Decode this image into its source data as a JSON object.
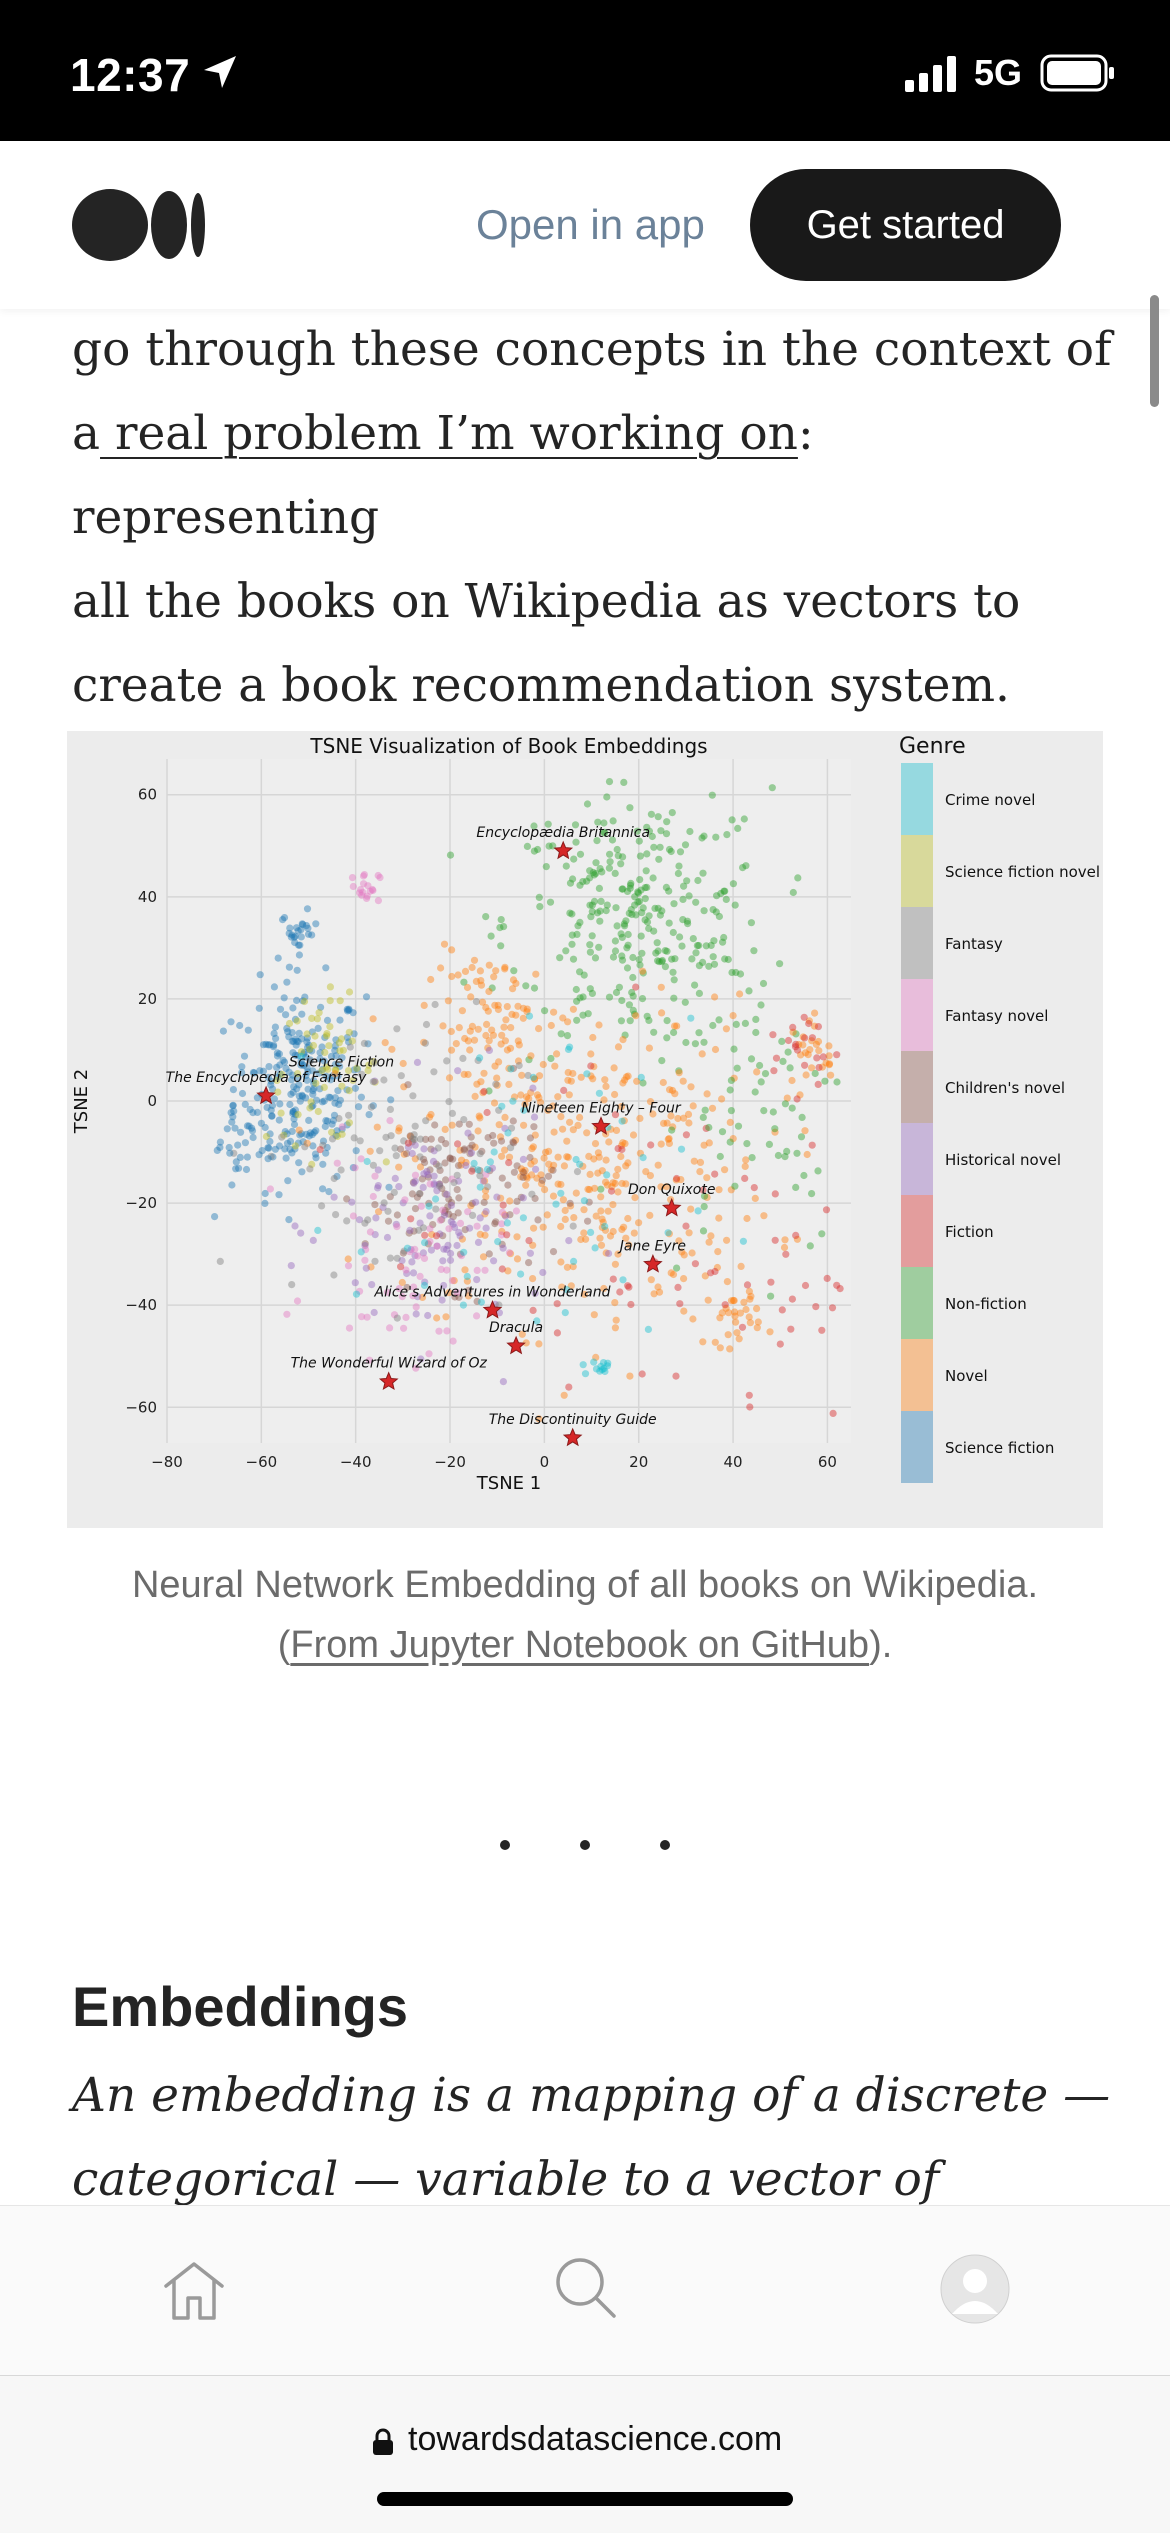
{
  "status_bar": {
    "time": "12:37",
    "network": "5G"
  },
  "header": {
    "open_in_app": "Open in app",
    "get_started": "Get started"
  },
  "article": {
    "para_line1": "go through these concepts in the context of",
    "para_line2_prefix": "a",
    "para_link": " real problem I’m working on",
    "para_line2_suffix": ": representing",
    "para_line3": "all the books on Wikipedia as vectors to",
    "para_line4": "create a book recommendation system.",
    "caption_line1": "Neural Network Embedding of all books on Wikipedia.",
    "caption_open": "(",
    "caption_link": "From Jupyter Notebook on GitHub",
    "caption_close": ").",
    "section_title": "Embeddings",
    "italic_line1": "An embedding is a mapping of a discrete —",
    "italic_line2": "categorical — variable to a vector of"
  },
  "browser": {
    "url": "towardsdatascience.com"
  },
  "icons": {
    "location": "location-arrow-icon",
    "signal": "cellular-signal-icon",
    "battery": "battery-icon",
    "logo": "medium-logo-icon",
    "home": "home-icon",
    "search": "search-icon",
    "avatar": "avatar-icon",
    "lock": "lock-icon"
  },
  "chart_data": {
    "type": "scatter",
    "title": "TSNE Visualization of Book Embeddings",
    "xlabel": "TSNE 1",
    "ylabel": "TSNE 2",
    "xlim": [
      -80,
      65
    ],
    "ylim": [
      -67,
      67
    ],
    "xticks": [
      "−80",
      "−60",
      "−40",
      "−20",
      "0",
      "20",
      "40",
      "60"
    ],
    "yticks": [
      "60",
      "40",
      "20",
      "0",
      "−20",
      "−40",
      "−60"
    ],
    "grid": true,
    "legend_title": "Genre",
    "legend_position": "right",
    "genres": [
      {
        "name": "Crime novel",
        "color": "#17becf"
      },
      {
        "name": "Science fiction novel",
        "color": "#bcbd22"
      },
      {
        "name": "Fantasy",
        "color": "#7f7f7f"
      },
      {
        "name": "Fantasy novel",
        "color": "#e377c2"
      },
      {
        "name": "Children's novel",
        "color": "#8c564b"
      },
      {
        "name": "Historical novel",
        "color": "#9467bd"
      },
      {
        "name": "Fiction",
        "color": "#d62728"
      },
      {
        "name": "Non-fiction",
        "color": "#2ca02c"
      },
      {
        "name": "Novel",
        "color": "#ff7f0e"
      },
      {
        "name": "Science fiction",
        "color": "#1f77b4"
      }
    ],
    "clusters": [
      {
        "genre": 9,
        "cx": -52,
        "cy": 3,
        "sx": 7,
        "sy": 10,
        "n": 260
      },
      {
        "genre": 9,
        "cx": -52,
        "cy": 33,
        "sx": 2,
        "sy": 2,
        "n": 25
      },
      {
        "genre": 1,
        "cx": -47,
        "cy": 6,
        "sx": 6,
        "sy": 7,
        "n": 60
      },
      {
        "genre": 7,
        "cx": 20,
        "cy": 35,
        "sx": 14,
        "sy": 13,
        "n": 300
      },
      {
        "genre": 8,
        "cx": 8,
        "cy": -12,
        "sx": 20,
        "sy": 16,
        "n": 360
      },
      {
        "genre": 8,
        "cx": -10,
        "cy": 15,
        "sx": 7,
        "sy": 7,
        "n": 80
      },
      {
        "genre": 8,
        "cx": 40,
        "cy": -42,
        "sx": 3,
        "sy": 3,
        "n": 30
      },
      {
        "genre": 8,
        "cx": 58,
        "cy": 10,
        "sx": 3,
        "sy": 3,
        "n": 25
      },
      {
        "genre": 4,
        "cx": -18,
        "cy": -17,
        "sx": 10,
        "sy": 9,
        "n": 110
      },
      {
        "genre": 5,
        "cx": -22,
        "cy": -25,
        "sx": 12,
        "sy": 12,
        "n": 110
      },
      {
        "genre": 3,
        "cx": -28,
        "cy": -30,
        "sx": 10,
        "sy": 10,
        "n": 70
      },
      {
        "genre": 3,
        "cx": -38,
        "cy": 42,
        "sx": 1.5,
        "sy": 1.5,
        "n": 18
      },
      {
        "genre": 2,
        "cx": -33,
        "cy": -10,
        "sx": 14,
        "sy": 14,
        "n": 90
      },
      {
        "genre": 0,
        "cx": -5,
        "cy": -20,
        "sx": 18,
        "sy": 18,
        "n": 60
      },
      {
        "genre": 0,
        "cx": 12,
        "cy": -52,
        "sx": 2,
        "sy": 1,
        "n": 12
      },
      {
        "genre": 6,
        "cx": 45,
        "cy": -35,
        "sx": 12,
        "sy": 14,
        "n": 35
      },
      {
        "genre": 6,
        "cx": 55,
        "cy": 10,
        "sx": 4,
        "sy": 4,
        "n": 20
      },
      {
        "genre": 6,
        "cx": 10,
        "cy": -20,
        "sx": 22,
        "sy": 20,
        "n": 40
      },
      {
        "genre": 7,
        "cx": 45,
        "cy": 0,
        "sx": 10,
        "sy": 15,
        "n": 60
      },
      {
        "genre": 9,
        "cx": -65,
        "cy": -10,
        "sx": 3,
        "sy": 6,
        "n": 20
      }
    ],
    "annotations": [
      {
        "label": "The Encyclopedia of Fantasy",
        "x": -59,
        "y": 1
      },
      {
        "label": "Science Fiction",
        "x": -43,
        "y": 4
      },
      {
        "label": "Encyclopædia Britannica",
        "x": 4,
        "y": 49
      },
      {
        "label": "Nineteen Eighty – Four",
        "x": 12,
        "y": -5
      },
      {
        "label": "Don Quixote",
        "x": 27,
        "y": -21
      },
      {
        "label": "Jane Eyre",
        "x": 23,
        "y": -32
      },
      {
        "label": "Alice's Adventures in Wonderland",
        "x": -11,
        "y": -41
      },
      {
        "label": "Dracula",
        "x": -6,
        "y": -48
      },
      {
        "label": "The Wonderful Wizard of Oz",
        "x": -33,
        "y": -55
      },
      {
        "label": "The Discontinuity Guide",
        "x": 6,
        "y": -66
      }
    ]
  }
}
